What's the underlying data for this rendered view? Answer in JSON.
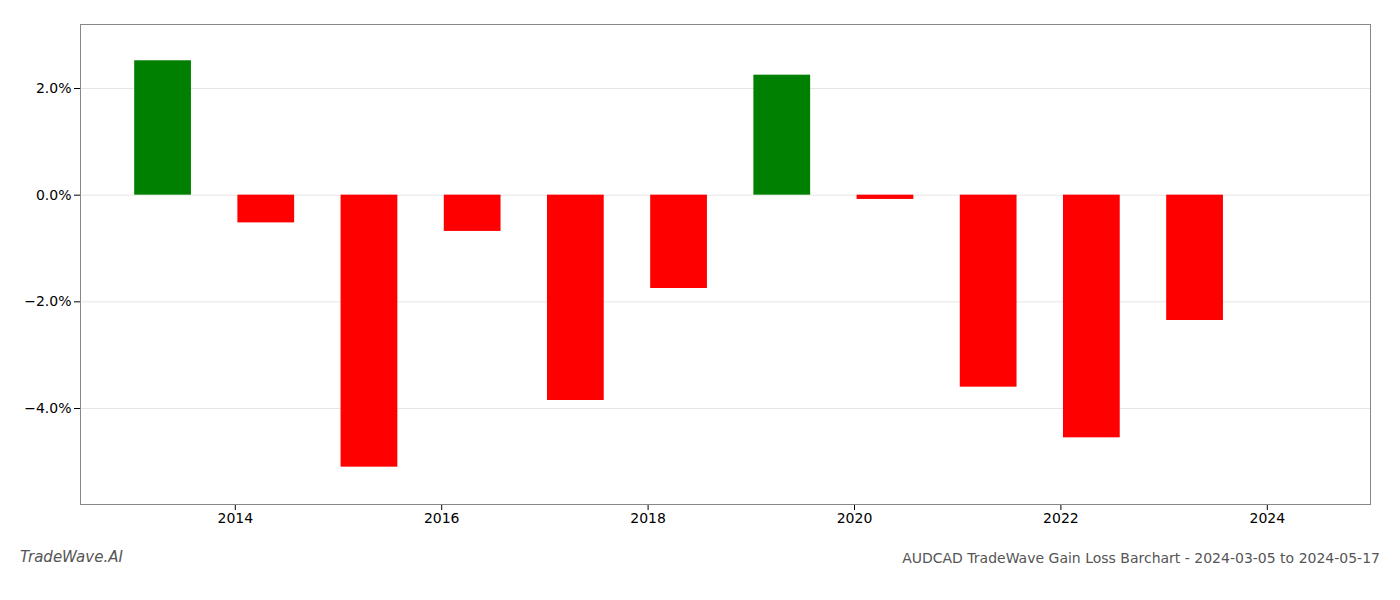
{
  "chart_data": {
    "type": "bar",
    "title": "AUDCAD TradeWave Gain Loss Barchart - 2024-03-05 to 2024-05-17",
    "annotations": [
      {
        "text": "TradeWave.AI"
      }
    ],
    "x": [
      2013.3,
      2014.3,
      2015.3,
      2016.3,
      2017.3,
      2018.3,
      2019.3,
      2020.3,
      2021.3,
      2022.3,
      2023.3
    ],
    "values": [
      2.52,
      -0.52,
      -5.1,
      -0.68,
      -3.85,
      -1.75,
      2.25,
      -0.08,
      -3.6,
      -4.55,
      -2.35
    ],
    "colors": [
      "#008000",
      "#FF0000",
      "#FF0000",
      "#FF0000",
      "#FF0000",
      "#FF0000",
      "#008000",
      "#FF0000",
      "#FF0000",
      "#FF0000",
      "#FF0000"
    ],
    "xlim": [
      2012.5,
      2025.0
    ],
    "xticks": [
      2014,
      2016,
      2018,
      2020,
      2022,
      2024
    ],
    "ylim": [
      -5.8,
      3.2
    ],
    "yticks": [
      {
        "value": -4.0,
        "label": "−4.0%"
      },
      {
        "value": -2.0,
        "label": "−2.0%"
      },
      {
        "value": 0.0,
        "label": "0.0%"
      },
      {
        "value": 2.0,
        "label": "2.0%"
      }
    ],
    "grid": true
  }
}
